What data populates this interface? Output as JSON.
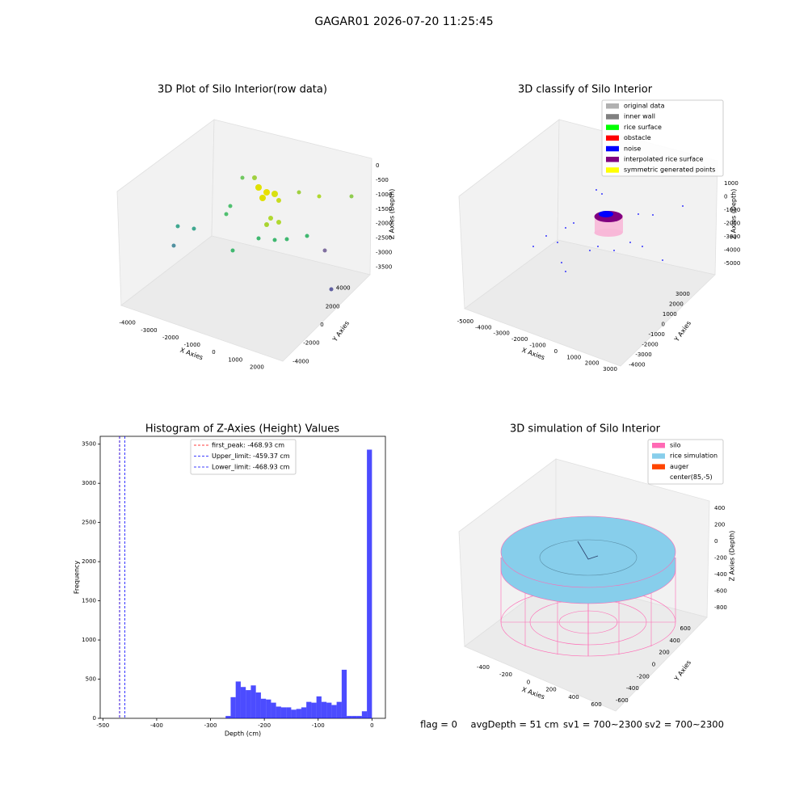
{
  "title": "GAGAR01 2026-07-20 11:25:45",
  "chart_data": [
    {
      "type": "scatter3d",
      "title": "3D Plot of Silo Interior(row data)",
      "xlabel": "X Axies",
      "ylabel": "Y Axies",
      "zlabel": "Z Axies (Depth)",
      "xlim": [
        -4400,
        2600
      ],
      "xticks": [
        -4000,
        -3000,
        -2000,
        -1000,
        0,
        1000,
        2000
      ],
      "ylim": [
        -4500,
        4500
      ],
      "yticks": [
        -4000,
        -2000,
        0,
        2000,
        4000
      ],
      "zlim": [
        -3800,
        200
      ],
      "zticks": [
        0,
        -500,
        -1000,
        -1500,
        -2000,
        -2500,
        -3000,
        -3500
      ]
    },
    {
      "type": "scatter3d",
      "title": "3D classify of Silo Interior",
      "xlabel": "X Axies",
      "ylabel": "Y Axies",
      "zlabel": "Z Axies (Depth)",
      "xlim": [
        -5400,
        3400
      ],
      "xticks": [
        -5000,
        -4000,
        -3000,
        -2000,
        -1000,
        0,
        1000,
        2000,
        3000
      ],
      "ylim": [
        -4300,
        3500
      ],
      "yticks": [
        -4000,
        -3000,
        -2000,
        -1000,
        0,
        1000,
        2000,
        3000
      ],
      "zlim": [
        -5500,
        1500
      ],
      "zticks": [
        1000,
        0,
        -1000,
        -2000,
        -3000,
        -4000,
        -5000
      ],
      "legend": [
        {
          "name": "original data",
          "color": "#b0b0b0"
        },
        {
          "name": "inner wall",
          "color": "#808080"
        },
        {
          "name": "rice surface",
          "color": "#00ff00"
        },
        {
          "name": "obstacle",
          "color": "#ff0000"
        },
        {
          "name": "noise",
          "color": "#0000ff"
        },
        {
          "name": "interpolated rice surface",
          "color": "#800080"
        },
        {
          "name": "symmetric generated points",
          "color": "#ffff00"
        }
      ]
    },
    {
      "type": "histogram",
      "title": "Histogram of Z-Axies (Height) Values",
      "xlabel": "Depth (cm)",
      "ylabel": "Frequency",
      "color": "#0000ff",
      "alpha": 0.7,
      "bins": [
        -468.93,
        -459.55,
        -450.17,
        -440.79,
        -431.42,
        -422.04,
        -412.66,
        -403.28,
        -393.9,
        -384.52,
        -375.14,
        -365.77,
        -356.39,
        -347.01,
        -337.63,
        -328.25,
        -318.87,
        -309.49,
        -300.12,
        -290.74,
        -281.36,
        -271.98,
        -262.6,
        -253.22,
        -243.84,
        -234.47,
        -225.09,
        -215.71,
        -206.33,
        -196.95,
        -187.57,
        -178.19,
        -168.81,
        -159.44,
        -150.06,
        -140.68,
        -131.3,
        -121.92,
        -112.54,
        -103.16,
        -93.79,
        -84.41,
        -75.03,
        -65.65,
        -56.27,
        -46.89,
        -37.51,
        -28.14,
        -18.76,
        -9.38,
        0
      ],
      "values": [
        0,
        0,
        0,
        0,
        0,
        0,
        0,
        0,
        0,
        0,
        0,
        0,
        0,
        0,
        0,
        0,
        0,
        0,
        0,
        0,
        0,
        30,
        270,
        470,
        400,
        360,
        420,
        330,
        250,
        240,
        200,
        150,
        140,
        140,
        110,
        120,
        140,
        210,
        200,
        280,
        210,
        200,
        170,
        210,
        620,
        30,
        30,
        30,
        90,
        3430
      ],
      "xlim": [
        -505,
        25
      ],
      "xticks": [
        -500,
        -400,
        -300,
        -200,
        -100,
        0
      ],
      "ylim": [
        0,
        3600
      ],
      "yticks": [
        0,
        500,
        1000,
        1500,
        2000,
        2500,
        3000,
        3500
      ],
      "lines": [
        {
          "name": "first_peak: -468.93 cm",
          "value": -468.93,
          "color": "#ff0000"
        },
        {
          "name": "Upper_limit: -459.37 cm",
          "value": -459.37,
          "color": "#0000ff"
        },
        {
          "name": "Lower_limit: -468.93 cm",
          "value": -468.93,
          "color": "#0000ff"
        }
      ]
    },
    {
      "type": "surface3d",
      "title": "3D simulation of Silo Interior",
      "xlabel": "X Axies",
      "ylabel": "Y Axies",
      "zlabel": "Z Axies (Depth)",
      "xlim": [
        -550,
        750
      ],
      "xticks": [
        -400,
        -200,
        0,
        200,
        400,
        600
      ],
      "ylim": [
        -750,
        750
      ],
      "yticks": [
        -600,
        -400,
        -200,
        0,
        200,
        400,
        600
      ],
      "zlim": [
        -900,
        500
      ],
      "zticks": [
        400,
        200,
        0,
        -200,
        -400,
        -600,
        -800
      ],
      "legend": [
        {
          "name": "silo",
          "color": "#ff69b4"
        },
        {
          "name": "rice simulation",
          "color": "#87ceeb"
        },
        {
          "name": "auger",
          "color": "#ff4500"
        },
        {
          "name": "center(85,-5)",
          "color": "#ffffff"
        }
      ]
    }
  ],
  "footer": [
    "flag = 0",
    "avgDepth = 51 cm",
    "sv1 = 700~2300",
    "sv2 = 700~2300"
  ]
}
